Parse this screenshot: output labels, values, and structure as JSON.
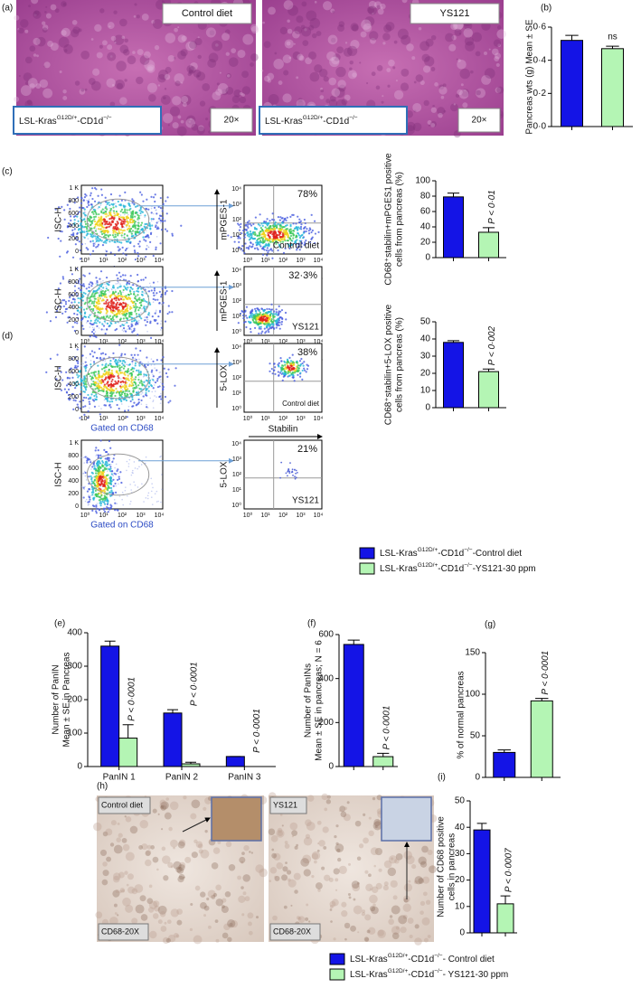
{
  "strain": {
    "base": "LSL-Kras",
    "sup1": "G12D/+",
    "mid": "-CD1d",
    "sup2": "−/−"
  },
  "panel_a": {
    "label": "(a)",
    "images": [
      {
        "tag": "Control diet",
        "mag": "20×"
      },
      {
        "tag": "YS121",
        "mag": "20×"
      }
    ]
  },
  "panel_c": {
    "label": "(c)",
    "rows": [
      {
        "percent": "78%",
        "tag": "Control diet",
        "y_label": "mPGES-1"
      },
      {
        "percent": "32·3%",
        "tag": "YS121",
        "y_label": "mPGES-1"
      }
    ]
  },
  "panel_d": {
    "label": "(d)",
    "rows": [
      {
        "percent": "38%",
        "tag": "Control diet",
        "y_label": "5-LOX"
      },
      {
        "percent": "21%",
        "tag": "YS121",
        "y_label": "5-LOX"
      }
    ]
  },
  "flow": {
    "left_y_label": "ISC-H",
    "left_x_label": "Gated on CD68",
    "left_yticks": [
      "1 K",
      "800",
      "600",
      "400",
      "200",
      "0"
    ],
    "log_ticks": [
      "10⁰",
      "10¹",
      "10²",
      "10³",
      "10⁴"
    ],
    "right_x_label": "Stabilin"
  },
  "panel_h": {
    "label": "(h)",
    "images": [
      {
        "tag": "Control diet",
        "mag": "CD68-20X"
      },
      {
        "tag": "YS121",
        "mag": "CD68-20X"
      }
    ]
  },
  "legend_1": {
    "entries": [
      {
        "suffix": "-Control diet",
        "color": "#1414e6"
      },
      {
        "suffix": "-YS121-30 ppm",
        "color": "#b4f5b4"
      }
    ]
  },
  "legend_2": {
    "entries": [
      {
        "suffix": "- Control diet",
        "color": "#1414e6"
      },
      {
        "suffix": "- YS121-30 ppm",
        "color": "#b4f5b4"
      }
    ]
  },
  "chart_data": [
    {
      "type": "bar",
      "panel_label": "(b)",
      "y_label": [
        "Pancreas wts (g) Mean ± SE"
      ],
      "values": [
        0.52,
        0.47
      ],
      "errors": [
        0.03,
        0.015
      ],
      "colors": [
        "#1414e6",
        "#b4f5b4"
      ],
      "ylim": [
        0,
        0.6
      ],
      "yticks": [
        {
          "value": 0,
          "label": "0·0"
        },
        {
          "value": 0.2,
          "label": "0·2"
        },
        {
          "value": 0.4,
          "label": "0·4"
        },
        {
          "value": 0.6,
          "label": "0·6"
        }
      ],
      "annotations": [
        "ns"
      ]
    },
    {
      "type": "bar",
      "panel_label": "(c)",
      "y_label": [
        "CD68⁺stabilin+mPGES1 positive",
        "cells from pancreas (%)"
      ],
      "values": [
        79,
        33
      ],
      "errors": [
        5,
        6
      ],
      "colors": [
        "#1414e6",
        "#b4f5b4"
      ],
      "ylim": [
        0,
        100
      ],
      "yticks": [
        0,
        20,
        40,
        60,
        80,
        100
      ],
      "annotations": [
        "P < 0·01"
      ]
    },
    {
      "type": "bar",
      "panel_label": "(d)",
      "y_label": [
        "CD68⁺stabilin+5-LOX positive",
        "cells from pancreas (%)"
      ],
      "values": [
        38,
        21
      ],
      "errors": [
        1,
        1.5
      ],
      "colors": [
        "#1414e6",
        "#b4f5b4"
      ],
      "ylim": [
        0,
        50
      ],
      "yticks": [
        0,
        10,
        20,
        30,
        40,
        50
      ],
      "annotations": [
        "P < 0·002"
      ]
    },
    {
      "type": "grouped_bar",
      "panel_label": "(e)",
      "y_label": [
        "Number of PanIN",
        "Mean ± SE in Pancreas"
      ],
      "categories": [
        "PanIN 1",
        "PanIN 2",
        "PanIN 3"
      ],
      "series": [
        {
          "color": "#1414e6",
          "values": [
            360,
            160,
            30
          ],
          "errors": [
            15,
            10,
            0
          ]
        },
        {
          "color": "#b4f5b4",
          "values": [
            85,
            8,
            0
          ],
          "errors": [
            40,
            5,
            0
          ]
        }
      ],
      "ylim": [
        0,
        400
      ],
      "yticks": [
        0,
        100,
        200,
        300,
        400
      ],
      "annotations": [
        "P < 0·0001",
        "P < 0·0001",
        "P < 0·0001"
      ]
    },
    {
      "type": "bar",
      "panel_label": "(f)",
      "y_label": [
        "Number of PanINs",
        "Mean ± SE in pancreas; N = 6"
      ],
      "values": [
        555,
        45
      ],
      "errors": [
        20,
        15
      ],
      "colors": [
        "#1414e6",
        "#b4f5b4"
      ],
      "ylim": [
        0,
        600
      ],
      "yticks": [
        0,
        200,
        400,
        600
      ],
      "annotations": [
        "P < 0·0001"
      ]
    },
    {
      "type": "bar",
      "panel_label": "(g)",
      "y_label": [
        "% of normal pancreas"
      ],
      "values": [
        30,
        92
      ],
      "errors": [
        3,
        3
      ],
      "colors": [
        "#1414e6",
        "#b4f5b4"
      ],
      "ylim": [
        0,
        150
      ],
      "yticks": [
        0,
        50,
        100,
        150
      ],
      "annotations": [
        "P < 0·0001"
      ]
    },
    {
      "type": "bar",
      "panel_label": "(i)",
      "y_label": [
        "Number of CD68 positive",
        "cells in pancreas"
      ],
      "values": [
        39,
        11
      ],
      "errors": [
        2.5,
        3
      ],
      "colors": [
        "#1414e6",
        "#b4f5b4"
      ],
      "ylim": [
        0,
        50
      ],
      "yticks": [
        0,
        10,
        20,
        30,
        40,
        50
      ],
      "annotations": [
        "P < 0·0007"
      ]
    }
  ]
}
